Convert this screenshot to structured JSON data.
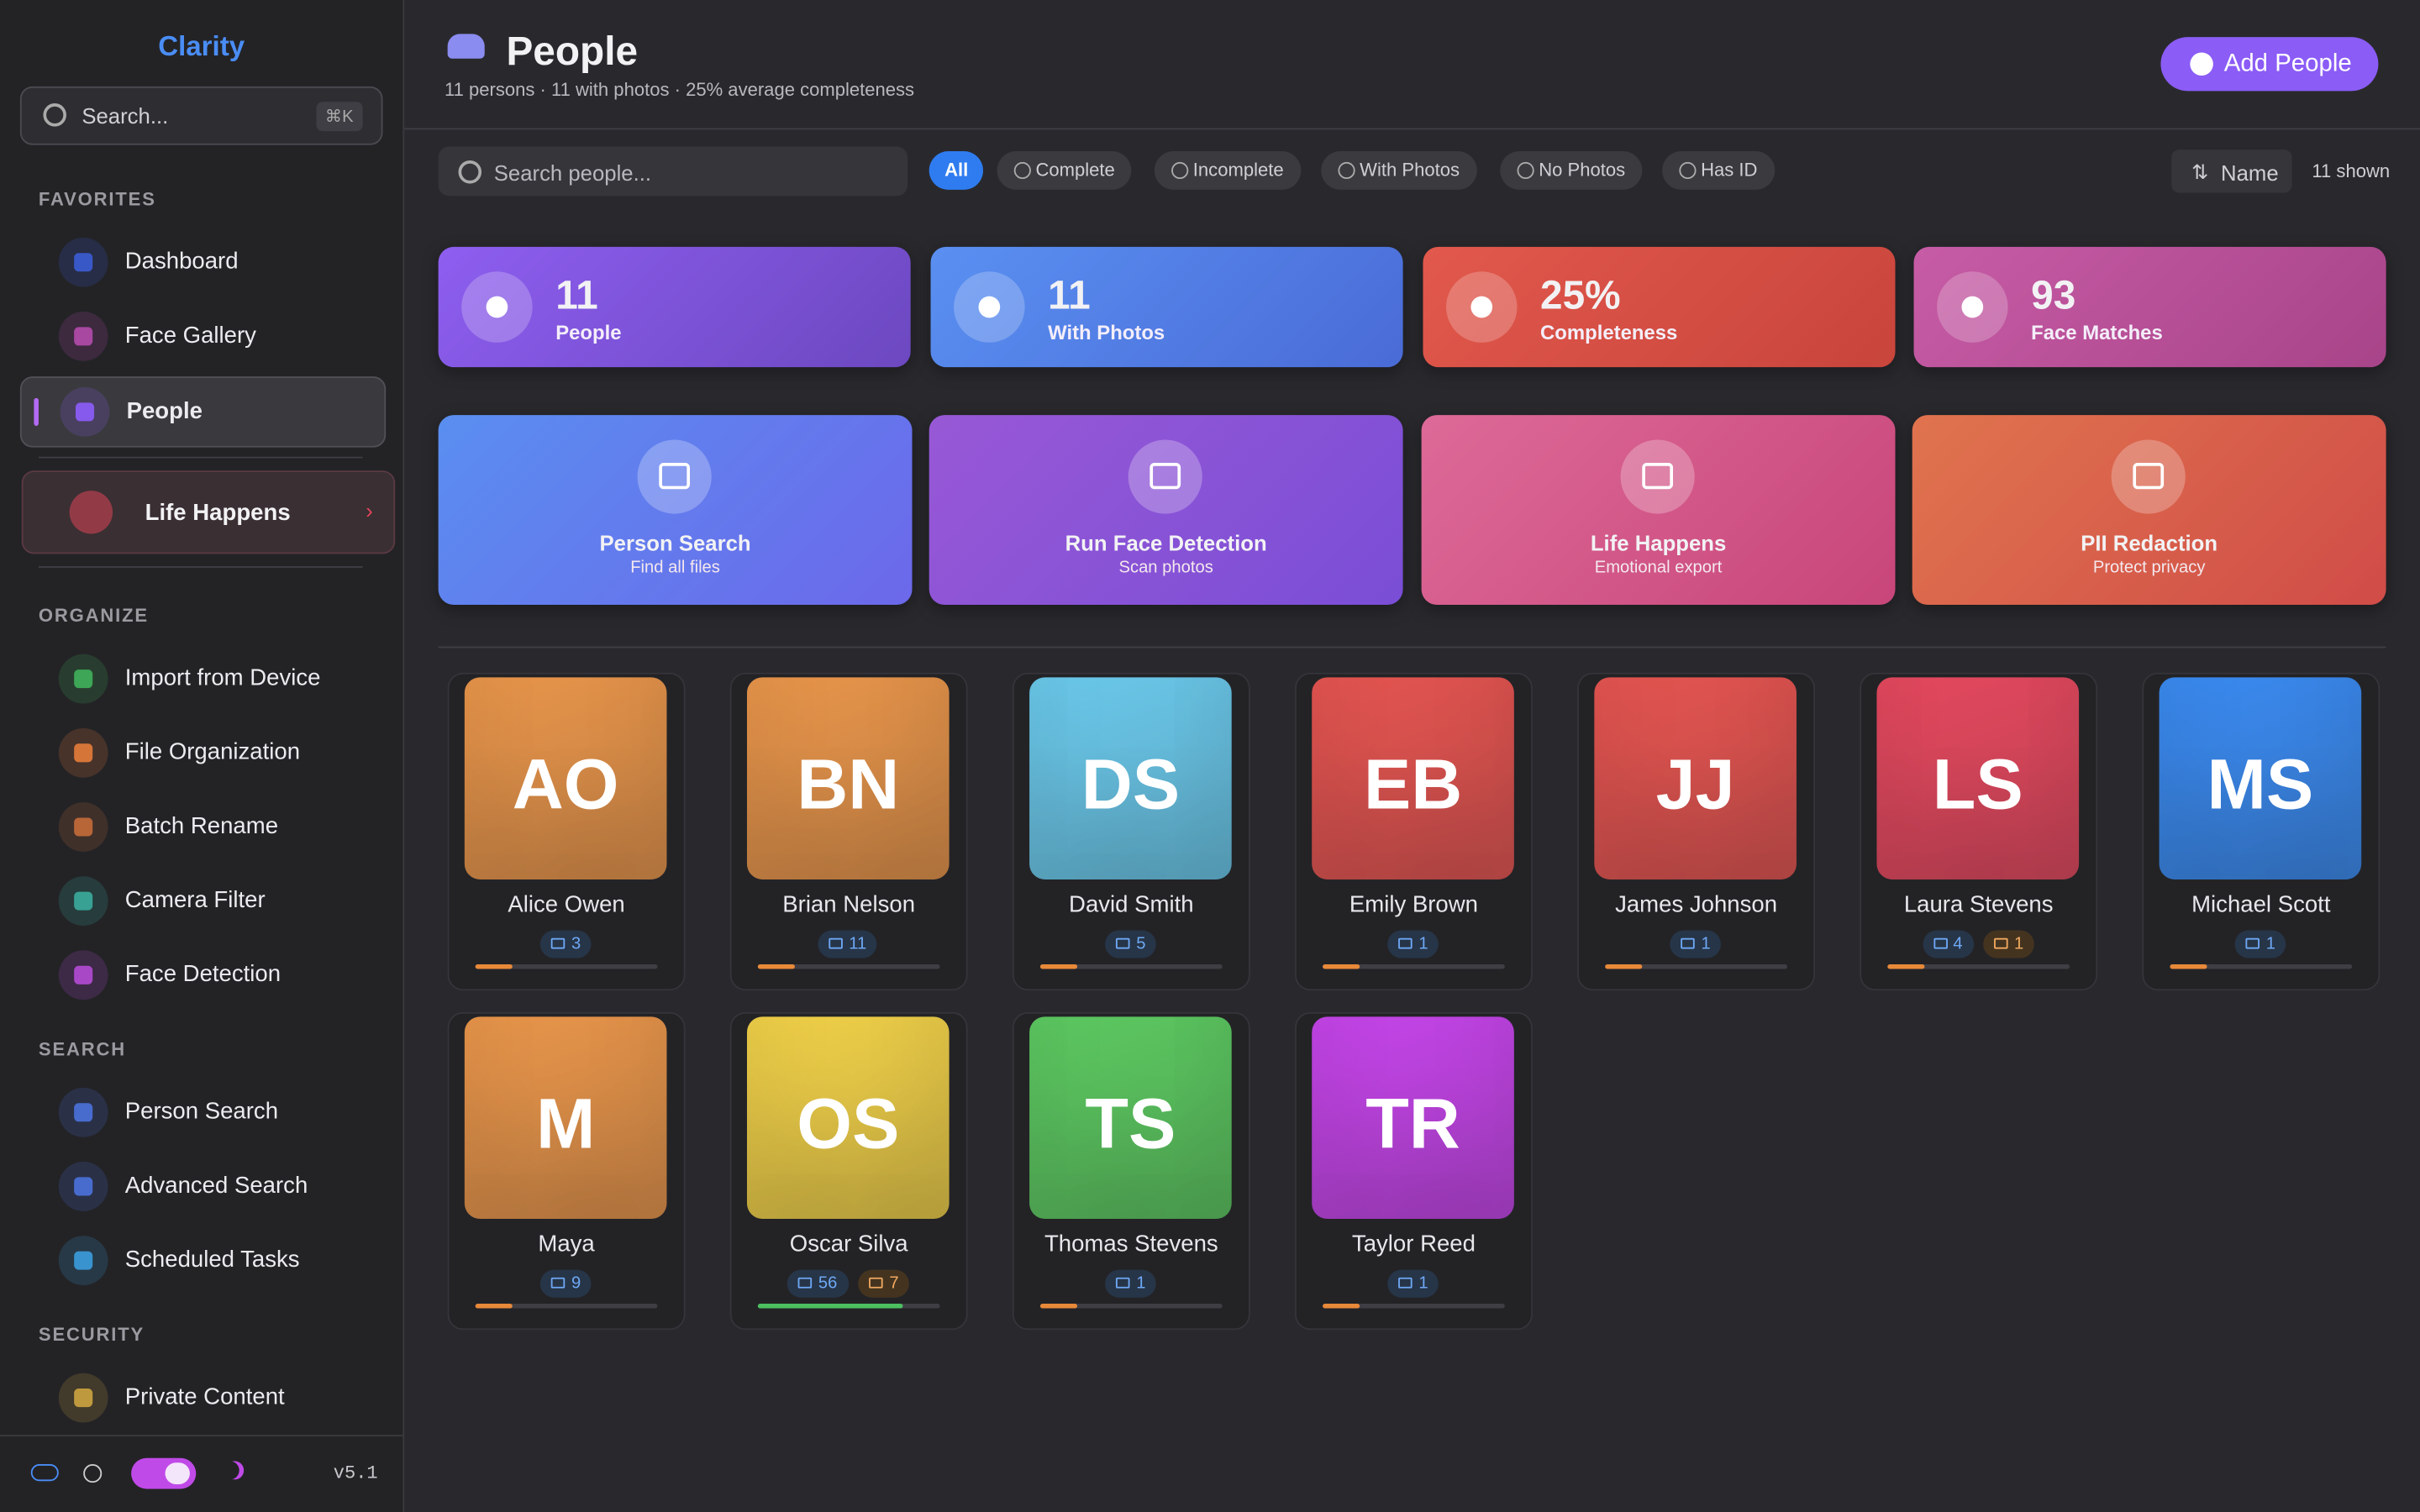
{
  "sidebar": {
    "brand": "Clarity",
    "search": "Search...",
    "shortcut": "⌘K",
    "sections": [
      {
        "title": "FAVORITES",
        "items": [
          {
            "label": "Dashboard",
            "color": "#3b5bd0"
          },
          {
            "label": "Face Gallery",
            "color": "#b04aa8"
          },
          {
            "label": "People",
            "color": "#8b5cf6",
            "active": true
          }
        ]
      },
      {
        "title": "ORGANIZE",
        "items": [
          {
            "label": "Import from Device",
            "color": "#3fae5a"
          },
          {
            "label": "File Organization",
            "color": "#e07a3a"
          },
          {
            "label": "Batch Rename",
            "color": "#c06a3a"
          },
          {
            "label": "Camera Filter",
            "color": "#3aa89a"
          },
          {
            "label": "Face Detection",
            "color": "#b04ad0"
          }
        ]
      },
      {
        "title": "SEARCH",
        "items": [
          {
            "label": "Person Search",
            "color": "#4a6fd8"
          },
          {
            "label": "Advanced Search",
            "color": "#4a6fd8"
          },
          {
            "label": "Scheduled Tasks",
            "color": "#3a9ad8"
          }
        ]
      },
      {
        "title": "SECURITY",
        "items": [
          {
            "label": "Private Content",
            "color": "#c8a040"
          }
        ]
      }
    ],
    "featured": {
      "label": "Life Happens",
      "color": "#e0455a"
    },
    "version": "v5.1"
  },
  "header": {
    "title": "People",
    "subtitle": "11 persons · 11 with photos · 25% average completeness",
    "button": "Add People"
  },
  "toolbar": {
    "search": "Search people...",
    "filters": [
      "All",
      "Complete",
      "Incomplete",
      "With Photos",
      "No Photos",
      "Has ID"
    ],
    "sort": "Name",
    "count": "11 shown"
  },
  "stats": [
    {
      "value": "11",
      "label": "People",
      "colors": [
        "#8e5ef0",
        "#6c48c0"
      ]
    },
    {
      "value": "11",
      "label": "With Photos",
      "colors": [
        "#5a90f2",
        "#4a6bd6"
      ]
    },
    {
      "value": "25%",
      "label": "Completeness",
      "colors": [
        "#e2584c",
        "#c8453c"
      ]
    },
    {
      "value": "93",
      "label": "Face Matches",
      "colors": [
        "#c75ca6",
        "#a84489"
      ]
    }
  ],
  "actions": [
    {
      "title": "Person Search",
      "subtitle": "Find all files",
      "colors": [
        "#5a8ef0",
        "#6c68ea"
      ]
    },
    {
      "title": "Run Face Detection",
      "subtitle": "Scan photos",
      "colors": [
        "#9858d6",
        "#7a4ed6"
      ]
    },
    {
      "title": "Life Happens",
      "subtitle": "Emotional export",
      "colors": [
        "#dd6a98",
        "#c8467a"
      ]
    },
    {
      "title": "PII Redaction",
      "subtitle": "Protect privacy",
      "colors": [
        "#e0744e",
        "#d04c48"
      ]
    }
  ],
  "people": [
    {
      "initials": "AO",
      "name": "Alice Owen",
      "photos": 3,
      "completeness": 20,
      "color": "#e8954a"
    },
    {
      "initials": "BN",
      "name": "Brian Nelson",
      "photos": 11,
      "completeness": 20,
      "color": "#e8954a"
    },
    {
      "initials": "DS",
      "name": "David Smith",
      "photos": 5,
      "completeness": 20,
      "color": "#6ac8ea"
    },
    {
      "initials": "EB",
      "name": "Emily Brown",
      "photos": 1,
      "completeness": 20,
      "color": "#e45450"
    },
    {
      "initials": "JJ",
      "name": "James Johnson",
      "photos": 1,
      "completeness": 20,
      "color": "#e45450"
    },
    {
      "initials": "LS",
      "name": "Laura Stevens",
      "photos": 4,
      "ids": 1,
      "completeness": 20,
      "color": "#e4485e"
    },
    {
      "initials": "MS",
      "name": "Michael Scott",
      "photos": 1,
      "completeness": 20,
      "color": "#3a8af0"
    },
    {
      "initials": "M",
      "name": "Maya",
      "photos": 9,
      "completeness": 20,
      "color": "#e8954a"
    },
    {
      "initials": "OS",
      "name": "Oscar Silva",
      "photos": 56,
      "ids": 7,
      "completeness": 80,
      "color": "#f0d048"
    },
    {
      "initials": "TS",
      "name": "Thomas Stevens",
      "photos": 1,
      "completeness": 20,
      "color": "#5cc860"
    },
    {
      "initials": "TR",
      "name": "Taylor Reed",
      "photos": 1,
      "completeness": 20,
      "color": "#c444e8"
    }
  ]
}
